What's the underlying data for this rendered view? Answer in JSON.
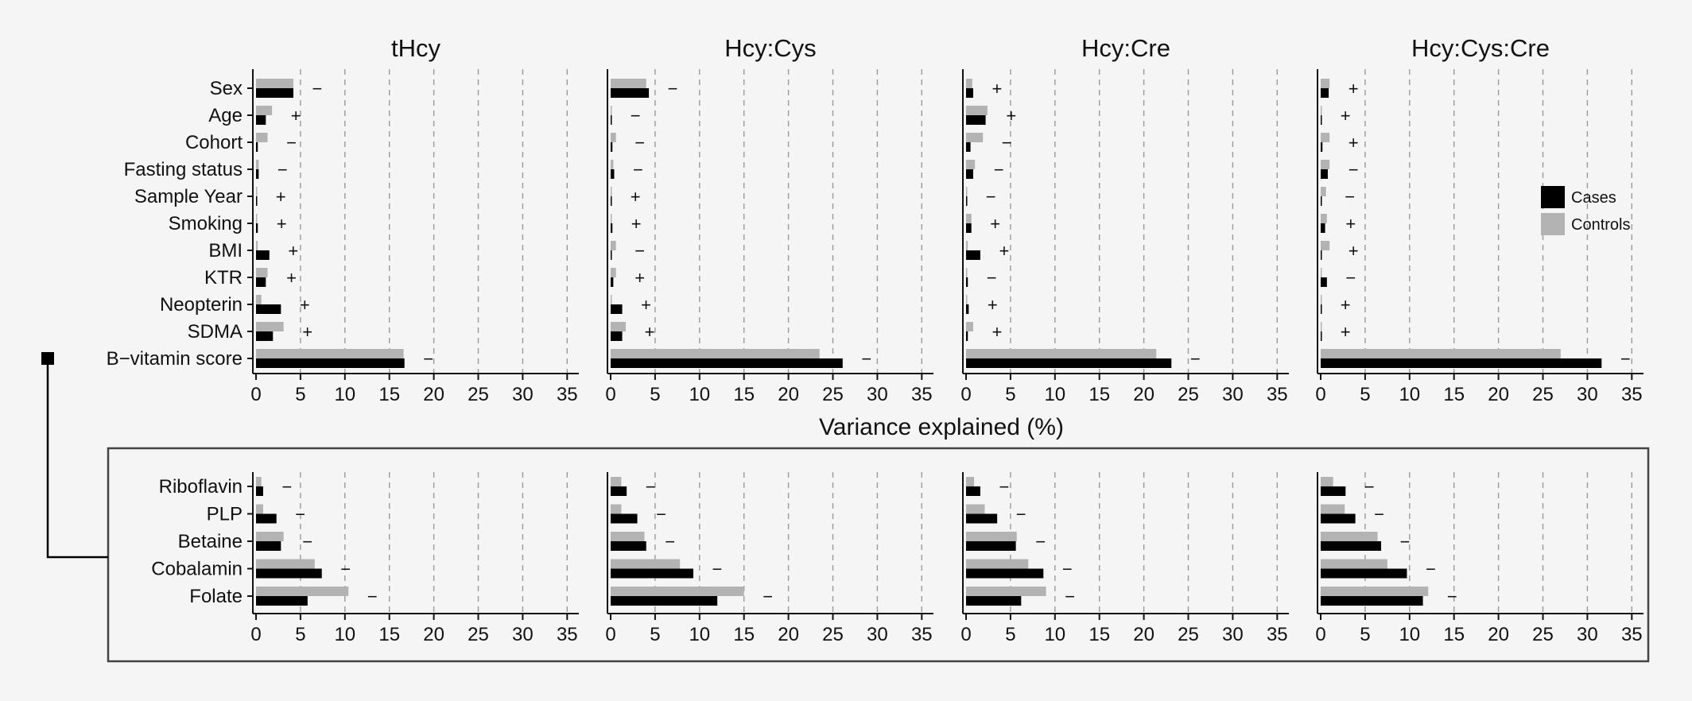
{
  "chart_data": {
    "type": "bar",
    "orientation": "horizontal",
    "xlabel": "Variance explained (%)",
    "xlim": [
      0,
      35
    ],
    "xticks": [
      0,
      5,
      10,
      15,
      20,
      25,
      30,
      35
    ],
    "grid": "vertical dashed",
    "legend": {
      "placement": "right of Hcy:Cys:Cre top panel",
      "entries": [
        {
          "label": "Cases",
          "color": "#000000"
        },
        {
          "label": "Controls",
          "color": "#b3b3b3"
        }
      ]
    },
    "panels": [
      "tHcy",
      "Hcy:Cys",
      "Hcy:Cre",
      "Hcy:Cys:Cre"
    ],
    "top_categories": [
      "Sex",
      "Age",
      "Cohort",
      "Fasting status",
      "Sample Year",
      "Smoking",
      "BMI",
      "KTR",
      "Neopterin",
      "SDMA",
      "B−vitamin score"
    ],
    "bottom_categories": [
      "Riboflavin",
      "PLP",
      "Betaine",
      "Cobalamin",
      "Folate"
    ],
    "top": {
      "tHcy": {
        "cases": [
          4.2,
          1.1,
          0.2,
          0.3,
          0.1,
          0.2,
          1.5,
          1.1,
          2.8,
          1.9,
          16.7
        ],
        "controls": [
          4.2,
          1.8,
          1.3,
          0.3,
          0.1,
          0.1,
          0.2,
          1.3,
          0.6,
          3.1,
          16.6
        ],
        "signs": [
          "−",
          "+",
          "−",
          "−",
          "+",
          "+",
          "+",
          "+",
          "+",
          "+",
          "−"
        ]
      },
      "Hcy:Cys": {
        "cases": [
          4.3,
          0.1,
          0.2,
          0.4,
          0.1,
          0.2,
          0.1,
          0.3,
          1.3,
          1.3,
          26.1
        ],
        "controls": [
          4.0,
          0.1,
          0.6,
          0.3,
          0.1,
          0.1,
          0.6,
          0.6,
          0.1,
          1.7,
          23.5
        ],
        "signs": [
          "−",
          "−",
          "−",
          "−",
          "+",
          "+",
          "−",
          "+",
          "+",
          "+",
          "−"
        ]
      },
      "Hcy:Cre": {
        "cases": [
          0.8,
          2.2,
          0.5,
          0.8,
          0.1,
          0.6,
          1.6,
          0.2,
          0.3,
          0.2,
          23.1
        ],
        "controls": [
          0.7,
          2.4,
          1.9,
          1.0,
          0.1,
          0.6,
          0.2,
          0.1,
          0.1,
          0.8,
          21.4
        ],
        "signs": [
          "+",
          "+",
          "−",
          "−",
          "−",
          "+",
          "+",
          "−",
          "+",
          "+",
          "−"
        ]
      },
      "Hcy:Cys:Cre": {
        "cases": [
          0.9,
          0.1,
          0.2,
          0.8,
          0.1,
          0.5,
          0.1,
          0.7,
          0.1,
          0.1,
          31.6
        ],
        "controls": [
          1.0,
          0.1,
          1.0,
          1.0,
          0.6,
          0.7,
          1.0,
          0.1,
          0.1,
          0.1,
          27.0
        ],
        "signs": [
          "+",
          "+",
          "+",
          "−",
          "−",
          "+",
          "+",
          "−",
          "+",
          "+",
          "−"
        ]
      }
    },
    "bottom": {
      "tHcy": {
        "cases": [
          0.8,
          2.3,
          2.8,
          7.4,
          5.8
        ],
        "controls": [
          0.6,
          0.8,
          3.1,
          6.6,
          10.4
        ],
        "signs": [
          "−",
          "−",
          "−",
          "−",
          "−"
        ]
      },
      "Hcy:Cys": {
        "cases": [
          1.8,
          3.0,
          4.0,
          9.3,
          12.0
        ],
        "controls": [
          1.2,
          1.2,
          3.8,
          7.8,
          15.0
        ],
        "signs": [
          "−",
          "−",
          "−",
          "−",
          "−"
        ]
      },
      "Hcy:Cre": {
        "cases": [
          1.6,
          3.5,
          5.6,
          8.7,
          6.2
        ],
        "controls": [
          0.9,
          2.1,
          5.7,
          7.0,
          9.0
        ],
        "signs": [
          "−",
          "−",
          "−",
          "−",
          "−"
        ]
      },
      "Hcy:Cys:Cre": {
        "cases": [
          2.8,
          3.9,
          6.8,
          9.7,
          11.5
        ],
        "controls": [
          1.4,
          2.7,
          6.4,
          7.5,
          12.1
        ],
        "signs": [
          "−",
          "−",
          "−",
          "−",
          "−"
        ]
      }
    }
  }
}
